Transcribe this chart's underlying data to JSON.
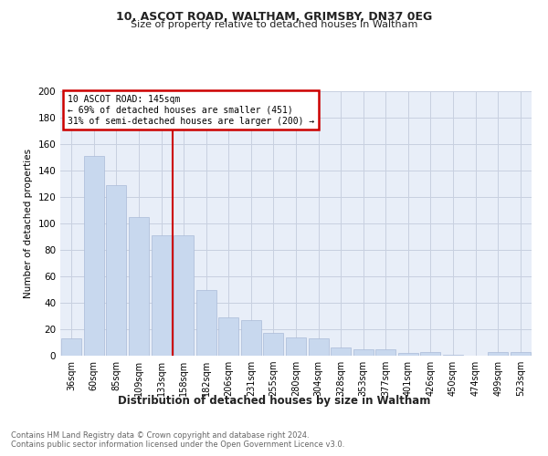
{
  "title1": "10, ASCOT ROAD, WALTHAM, GRIMSBY, DN37 0EG",
  "title2": "Size of property relative to detached houses in Waltham",
  "xlabel": "Distribution of detached houses by size in Waltham",
  "ylabel": "Number of detached properties",
  "categories": [
    "36sqm",
    "60sqm",
    "85sqm",
    "109sqm",
    "133sqm",
    "158sqm",
    "182sqm",
    "206sqm",
    "231sqm",
    "255sqm",
    "280sqm",
    "304sqm",
    "328sqm",
    "353sqm",
    "377sqm",
    "401sqm",
    "426sqm",
    "450sqm",
    "474sqm",
    "499sqm",
    "523sqm"
  ],
  "values": [
    13,
    151,
    129,
    105,
    91,
    91,
    50,
    29,
    27,
    17,
    14,
    13,
    6,
    5,
    5,
    2,
    3,
    1,
    0,
    3,
    3
  ],
  "bar_color": "#c8d8ee",
  "bar_edge_color": "#aabbd8",
  "vline_x": 4.5,
  "vline_color": "#cc0000",
  "annotation_text": "10 ASCOT ROAD: 145sqm\n← 69% of detached houses are smaller (451)\n31% of semi-detached houses are larger (200) →",
  "annotation_box_color": "#cc0000",
  "ylim": [
    0,
    200
  ],
  "yticks": [
    0,
    20,
    40,
    60,
    80,
    100,
    120,
    140,
    160,
    180,
    200
  ],
  "footer1": "Contains HM Land Registry data © Crown copyright and database right 2024.",
  "footer2": "Contains public sector information licensed under the Open Government Licence v3.0.",
  "bg_color": "#ffffff",
  "plot_bg_color": "#e8eef8",
  "grid_color": "#c8d0e0"
}
